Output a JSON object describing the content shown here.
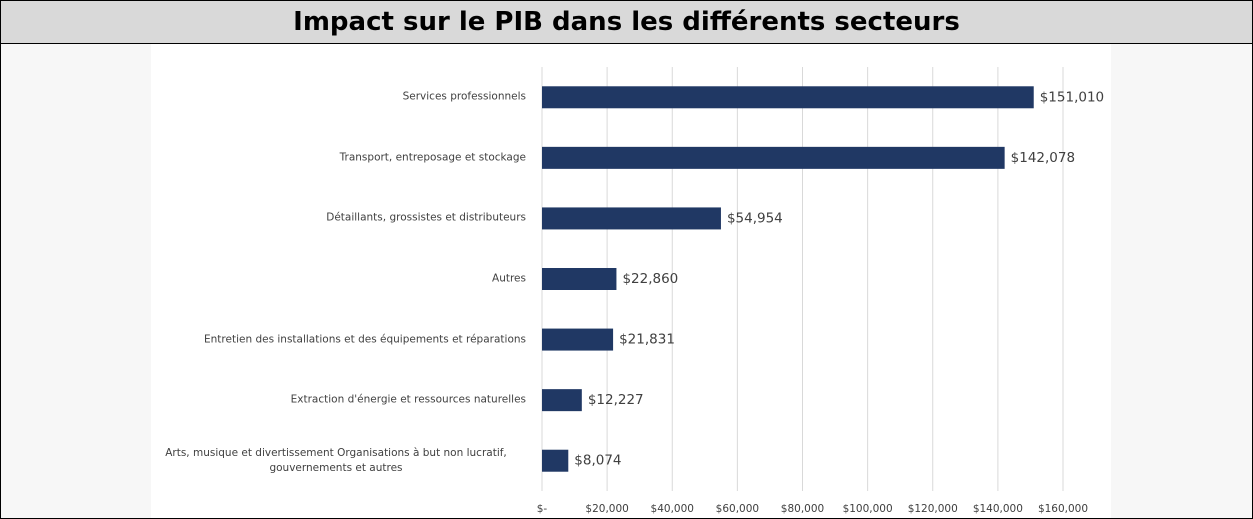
{
  "chart_data": {
    "type": "barh",
    "title": "Impact sur le PIB dans les différents secteurs",
    "categories": [
      "Services professionnels",
      "Transport, entreposage et stockage",
      "Détaillants, grossistes et distributeurs",
      "Autres",
      "Entretien des installations et des équipements et réparations",
      "Extraction d'énergie et ressources naturelles",
      "Arts, musique et divertissement Organisations à but non lucratif, gouvernements et autres"
    ],
    "values": [
      151010,
      142078,
      54954,
      22860,
      21831,
      12227,
      8074
    ],
    "value_labels": [
      "$151,010",
      "$142,078",
      "$54,954",
      "$22,860",
      "$21,831",
      "$12,227",
      "$8,074"
    ],
    "color": "#203864",
    "xlim": [
      0,
      160000
    ],
    "xticks": [
      {
        "value": 0,
        "label": "$-"
      },
      {
        "value": 20000,
        "label": "$20,000"
      },
      {
        "value": 40000,
        "label": "$40,000"
      },
      {
        "value": 60000,
        "label": "$60,000"
      },
      {
        "value": 80000,
        "label": "$80,000"
      },
      {
        "value": 100000,
        "label": "$100,000"
      },
      {
        "value": 120000,
        "label": "$120,000"
      },
      {
        "value": 140000,
        "label": "$140,000"
      },
      {
        "value": 160000,
        "label": "$160,000"
      }
    ],
    "grid": true
  }
}
